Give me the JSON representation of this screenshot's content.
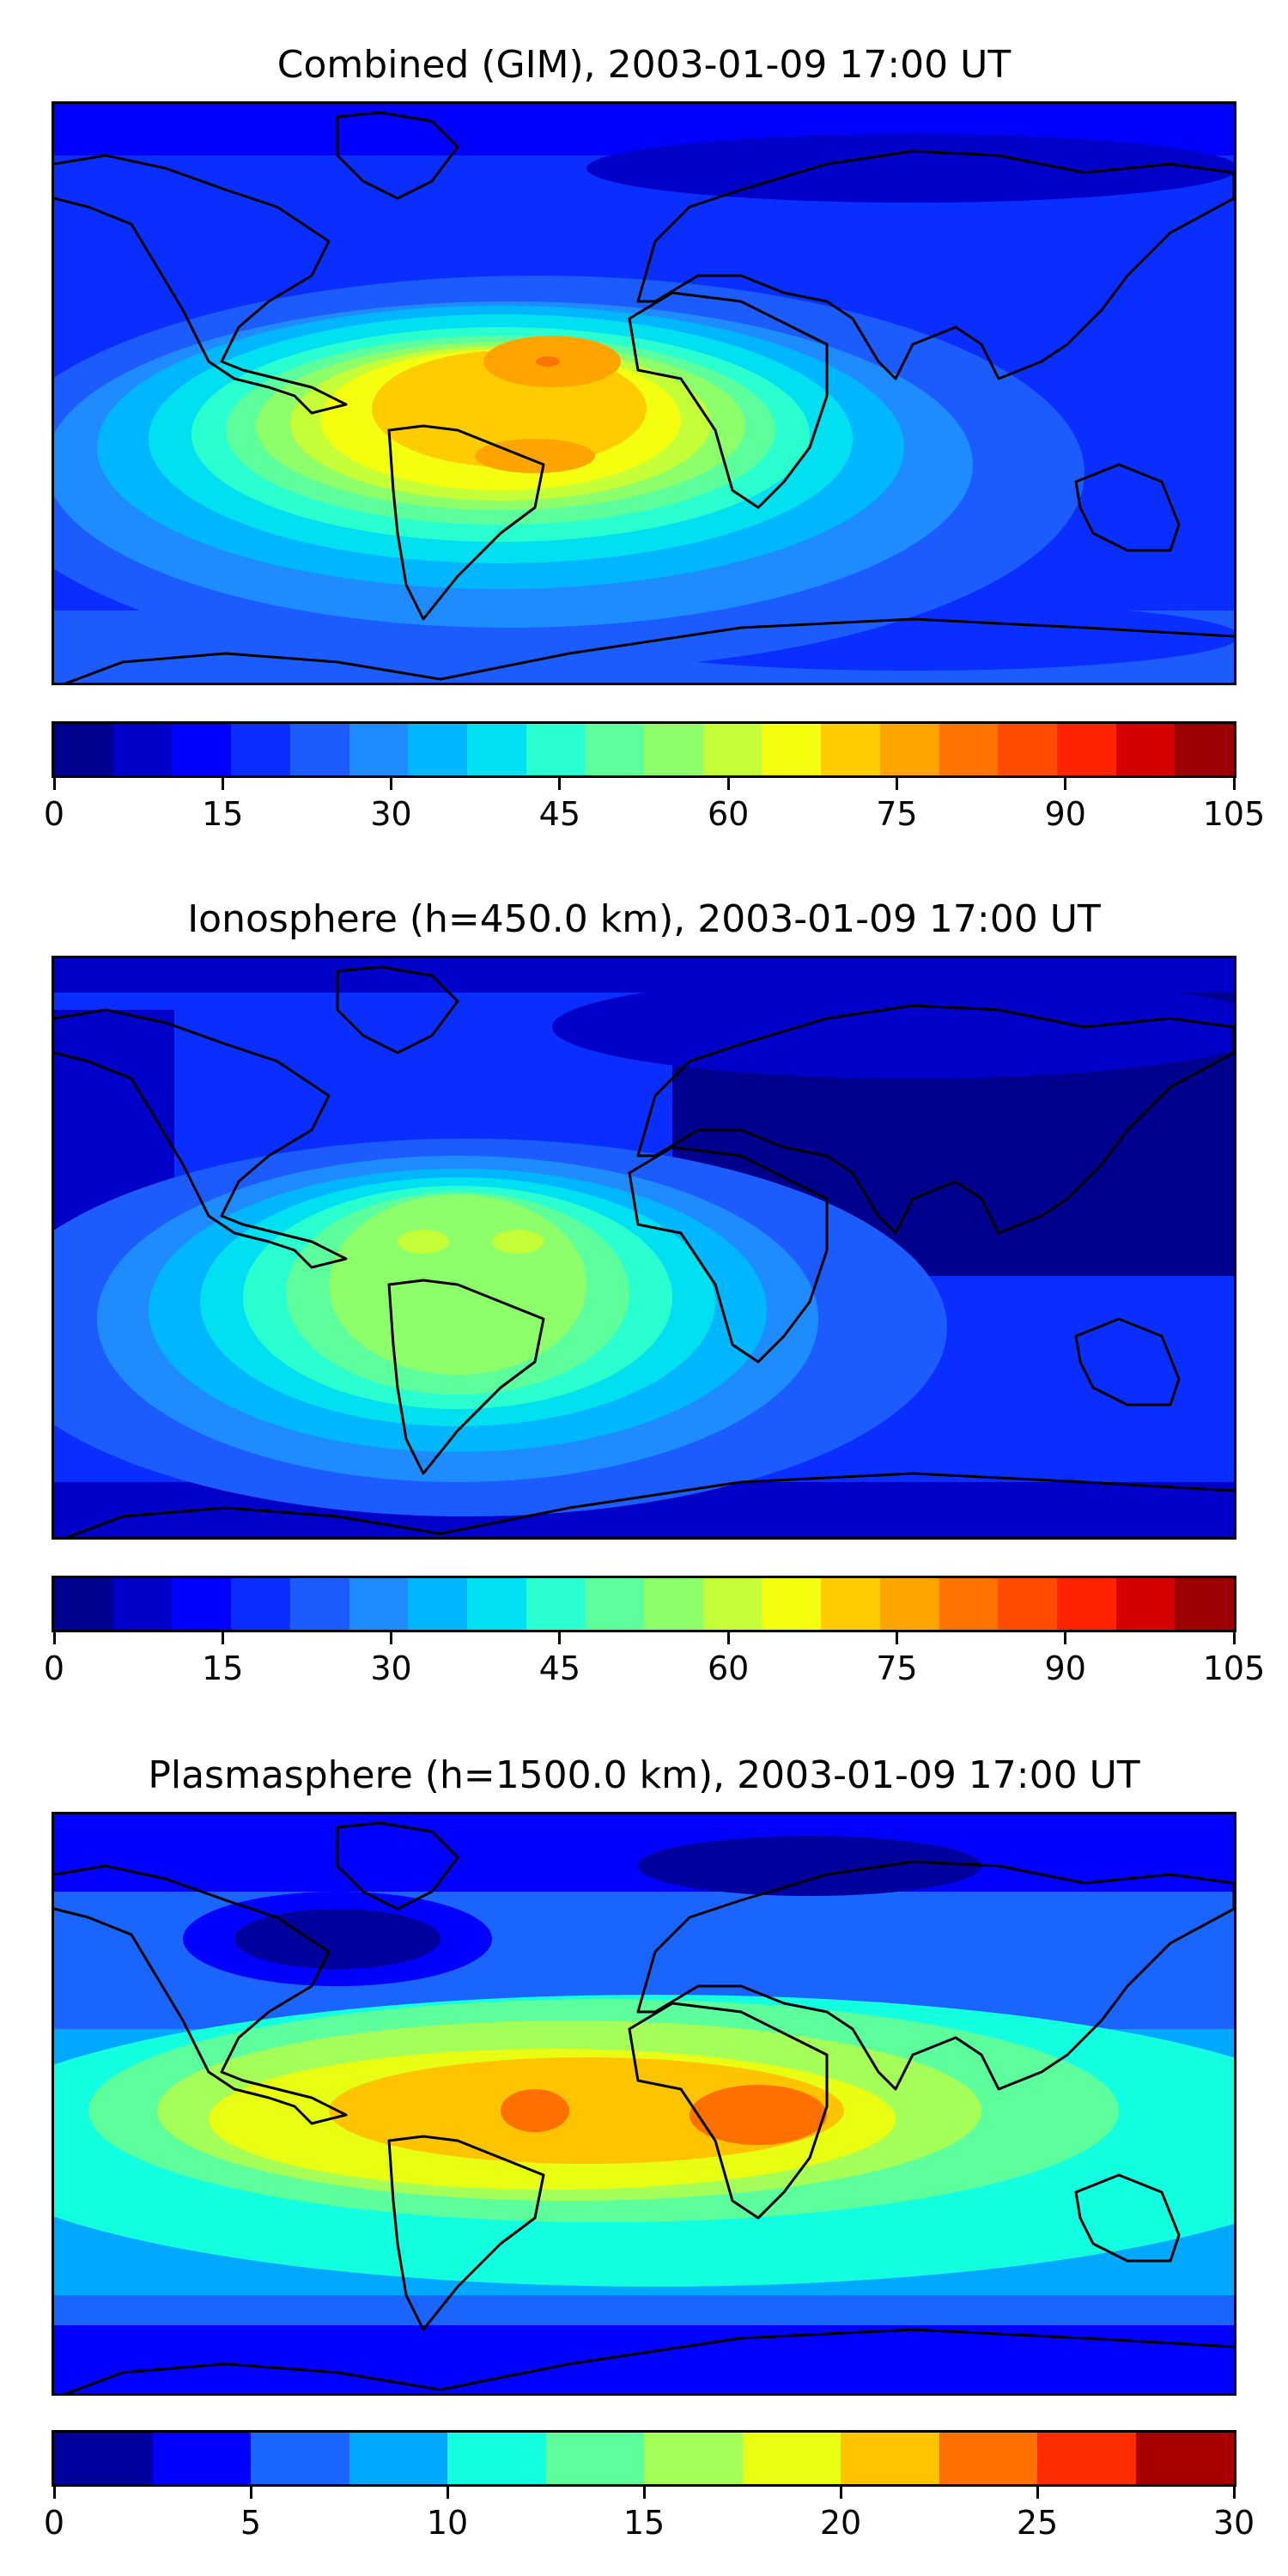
{
  "panels": [
    {
      "title": "Combined (GIM), 2003-01-09 17:00 UT",
      "colorbar": {
        "ticks": [
          "0",
          "15",
          "30",
          "45",
          "60",
          "75",
          "90",
          "105"
        ],
        "min": 0,
        "max": 105,
        "colors": [
          "#00008f",
          "#0000c8",
          "#0000ff",
          "#0a2eff",
          "#1c5cff",
          "#1e8cff",
          "#00b6ff",
          "#00e0f0",
          "#2affd0",
          "#5cff9c",
          "#8cff6a",
          "#c4ff38",
          "#f4ff10",
          "#ffcc00",
          "#ffa400",
          "#ff7400",
          "#ff4c00",
          "#ff2400",
          "#d40000",
          "#9c0000"
        ]
      }
    },
    {
      "title": "Ionosphere  (h=450.0 km), 2003-01-09 17:00 UT",
      "colorbar": {
        "ticks": [
          "0",
          "15",
          "30",
          "45",
          "60",
          "75",
          "90",
          "105"
        ],
        "min": 0,
        "max": 105,
        "colors": [
          "#00008f",
          "#0000c8",
          "#0000ff",
          "#0a2eff",
          "#1c5cff",
          "#1e8cff",
          "#00b6ff",
          "#00e0f0",
          "#2affd0",
          "#5cff9c",
          "#8cff6a",
          "#c4ff38",
          "#f4ff10",
          "#ffcc00",
          "#ffa400",
          "#ff7400",
          "#ff4c00",
          "#ff2400",
          "#d40000",
          "#9c0000"
        ]
      }
    },
    {
      "title": "Plasmasphere (h=1500.0 km), 2003-01-09 17:00 UT",
      "colorbar": {
        "ticks": [
          "0",
          "5",
          "10",
          "15",
          "20",
          "25",
          "30"
        ],
        "min": 0,
        "max": 30,
        "colors": [
          "#00009c",
          "#0000ff",
          "#1a64ff",
          "#00a8ff",
          "#12ffe0",
          "#5cff9c",
          "#a4ff58",
          "#e8ff14",
          "#ffc400",
          "#ff7000",
          "#ff2c00",
          "#a80000"
        ]
      }
    }
  ]
}
